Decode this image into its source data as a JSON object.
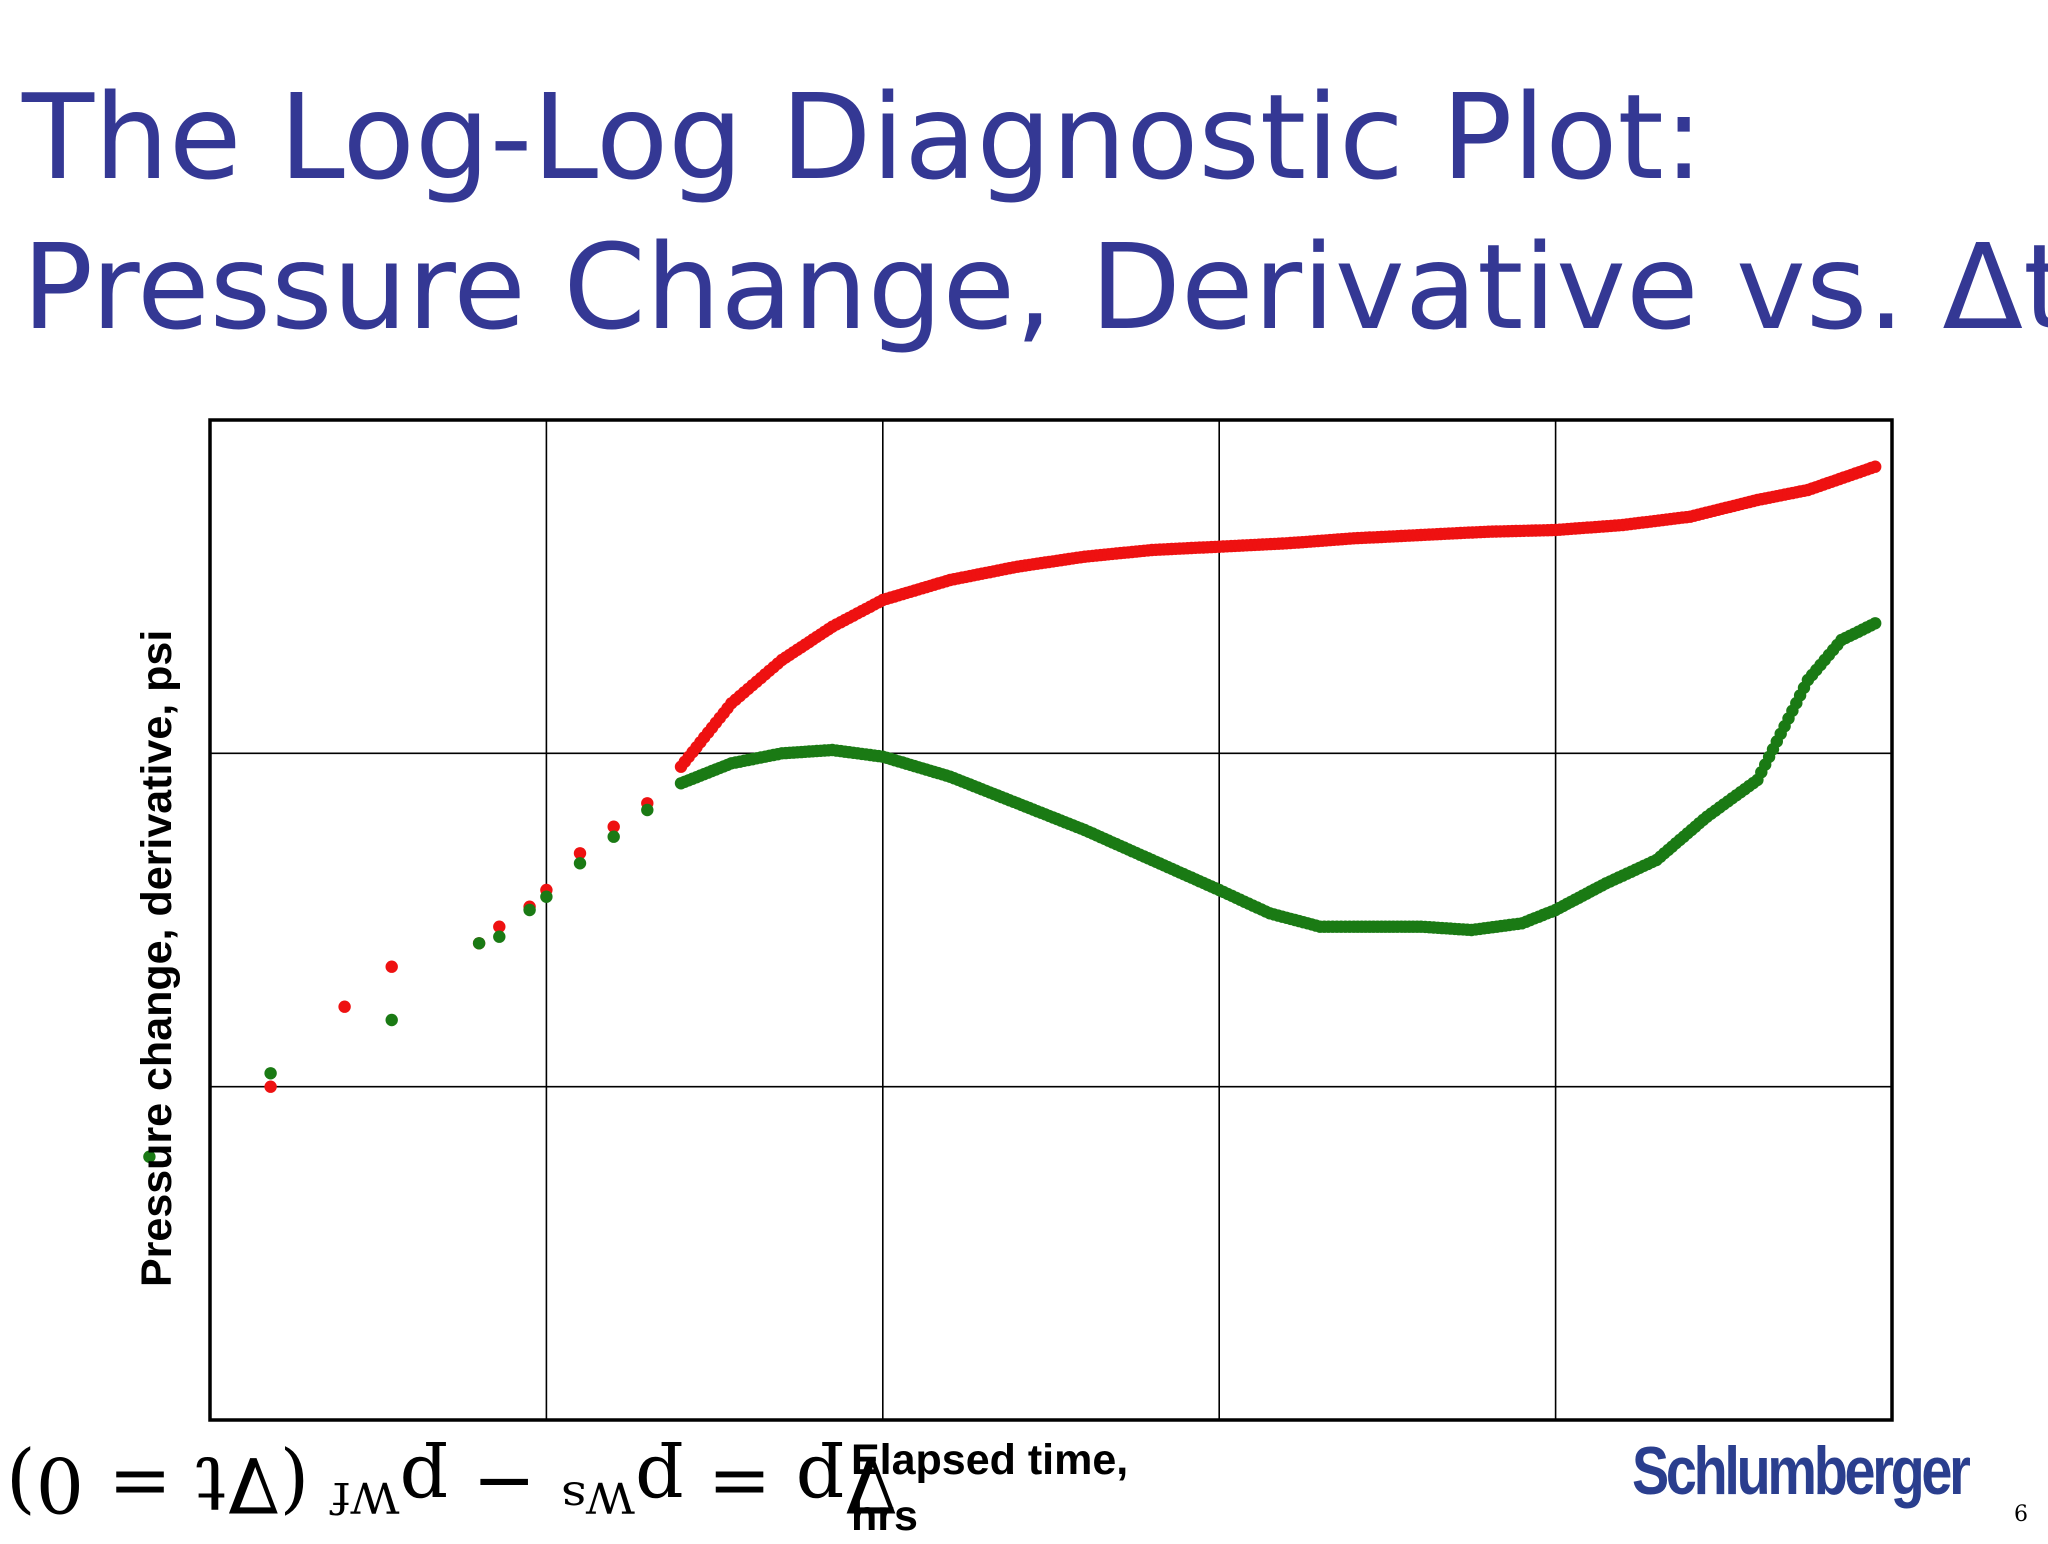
{
  "slide": {
    "title_line1": "The Log-Log Diagnostic Plot:",
    "title_line2": "Pressure Change, Derivative vs. Δt",
    "equation": "∇p = pᵂˢ − pᵂᶠ (∇t = 0)",
    "logo_text": "Schlumberger",
    "page_number": "6"
  },
  "chart_data": {
    "type": "scatter",
    "title": "",
    "xlabel": "Elapsed time, hrs",
    "ylabel": "Pressure change, derivative, psi",
    "xscale": "log",
    "yscale": "log",
    "xlim_decades": [
      0,
      5
    ],
    "ylim_decades": [
      0,
      3
    ],
    "grid": true,
    "tick_labels_shown": false,
    "colors": {
      "pressure": "#ee1111",
      "derivative": "#1a7a14",
      "title": "#343894",
      "logo": "#2a3e8e"
    },
    "series": [
      {
        "name": "Pressure change",
        "color": "#ee1111",
        "points": [
          [
            0.18,
            1.0
          ],
          [
            0.4,
            1.24
          ],
          [
            0.54,
            1.36
          ],
          [
            0.8,
            1.43
          ],
          [
            0.86,
            1.48
          ],
          [
            0.95,
            1.54
          ],
          [
            1.0,
            1.59
          ],
          [
            1.1,
            1.7
          ],
          [
            1.2,
            1.78
          ],
          [
            1.3,
            1.85
          ],
          [
            1.4,
            1.96
          ],
          [
            1.55,
            2.15
          ],
          [
            1.7,
            2.28
          ],
          [
            1.85,
            2.38
          ],
          [
            2.0,
            2.46
          ],
          [
            2.2,
            2.52
          ],
          [
            2.4,
            2.56
          ],
          [
            2.6,
            2.59
          ],
          [
            2.8,
            2.61
          ],
          [
            3.0,
            2.62
          ],
          [
            3.2,
            2.63
          ],
          [
            3.4,
            2.645
          ],
          [
            3.6,
            2.655
          ],
          [
            3.8,
            2.665
          ],
          [
            4.0,
            2.67
          ],
          [
            4.2,
            2.685
          ],
          [
            4.4,
            2.71
          ],
          [
            4.6,
            2.76
          ],
          [
            4.75,
            2.79
          ],
          [
            4.95,
            2.86
          ]
        ]
      },
      {
        "name": "Pressure derivative",
        "color": "#1a7a14",
        "points": [
          [
            -0.18,
            0.79
          ],
          [
            0.18,
            1.04
          ],
          [
            0.54,
            1.2
          ],
          [
            0.8,
            1.43
          ],
          [
            0.86,
            1.45
          ],
          [
            0.95,
            1.53
          ],
          [
            1.0,
            1.57
          ],
          [
            1.1,
            1.67
          ],
          [
            1.2,
            1.75
          ],
          [
            1.3,
            1.83
          ],
          [
            1.4,
            1.91
          ],
          [
            1.55,
            1.97
          ],
          [
            1.7,
            2.0
          ],
          [
            1.85,
            2.01
          ],
          [
            2.0,
            1.99
          ],
          [
            2.2,
            1.93
          ],
          [
            2.4,
            1.85
          ],
          [
            2.6,
            1.77
          ],
          [
            2.8,
            1.68
          ],
          [
            3.0,
            1.59
          ],
          [
            3.15,
            1.52
          ],
          [
            3.3,
            1.48
          ],
          [
            3.4,
            1.48
          ],
          [
            3.6,
            1.48
          ],
          [
            3.75,
            1.47
          ],
          [
            3.9,
            1.49
          ],
          [
            4.0,
            1.53
          ],
          [
            4.15,
            1.61
          ],
          [
            4.3,
            1.68
          ],
          [
            4.45,
            1.81
          ],
          [
            4.6,
            1.92
          ],
          [
            4.75,
            2.22
          ],
          [
            4.85,
            2.34
          ],
          [
            4.95,
            2.39
          ]
        ]
      }
    ]
  }
}
